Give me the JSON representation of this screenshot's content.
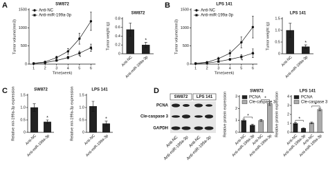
{
  "panel_labels": [
    "A",
    "B",
    "C",
    "D"
  ],
  "blot": {
    "proteins": [
      "PCNA",
      "Cle-caspase 3",
      "GAPDH"
    ],
    "cell_lines": [
      "SW872",
      "LPS 141"
    ],
    "lanes": [
      "Anti-NC",
      "Anti-miR-199a-3p",
      "Anti-NC",
      "Anti-miR-199a-3p"
    ]
  },
  "chart_data": [
    {
      "type": "line",
      "title": "SW872",
      "xlabel": "Time(week)",
      "ylabel": "Tumor volume(mm3)",
      "x": [
        1,
        2,
        3,
        4,
        5,
        6
      ],
      "xlim": [
        0.6,
        6.4
      ],
      "xticks": [
        1,
        2,
        3,
        4,
        5,
        6
      ],
      "ylim": [
        0,
        1500
      ],
      "yticks": [
        0,
        500,
        1000,
        1500
      ],
      "legend": "upper left",
      "series": [
        {
          "name": "Anti-NC",
          "color": "#111",
          "marker": "circle",
          "values": [
            20,
            60,
            180,
            350,
            700,
            1180
          ],
          "errors": [
            10,
            20,
            40,
            80,
            150,
            250
          ]
        },
        {
          "name": "Anti-miR-199a-3p",
          "color": "#111",
          "marker": "square",
          "values": [
            15,
            40,
            100,
            180,
            300,
            450
          ],
          "errors": [
            5,
            15,
            25,
            40,
            60,
            100
          ]
        }
      ],
      "annotations": [
        {
          "text": "*",
          "x": 5
        },
        {
          "text": "*",
          "x": 6
        }
      ]
    },
    {
      "type": "bar",
      "title": "SW872",
      "ylabel": "Tumor weight (g)",
      "categories": [
        "Anti-NC",
        "Anti-miR-199a-3p"
      ],
      "ylim": [
        0,
        0.8
      ],
      "yticks": [
        0,
        0.2,
        0.4,
        0.6,
        0.8
      ],
      "series": [
        {
          "color": "#222",
          "values": [
            0.55,
            0.2
          ],
          "errors": [
            0.15,
            0.06
          ]
        }
      ],
      "annotations": [
        {
          "text": "*",
          "at": 1
        }
      ]
    },
    {
      "type": "line",
      "title": "LPS 141",
      "xlabel": "Time(week)",
      "ylabel": "Tumor volume(mm3)",
      "x": [
        1,
        2,
        3,
        4,
        5,
        6
      ],
      "xlim": [
        0.6,
        6.4
      ],
      "xticks": [
        1,
        2,
        3,
        4,
        5,
        6
      ],
      "ylim": [
        0,
        1500
      ],
      "yticks": [
        0,
        500,
        1000,
        1500
      ],
      "legend": "upper left",
      "series": [
        {
          "name": "Anti-NC",
          "color": "#111",
          "marker": "circle",
          "values": [
            20,
            50,
            150,
            300,
            600,
            1020
          ],
          "errors": [
            10,
            20,
            40,
            80,
            150,
            300
          ]
        },
        {
          "name": "Anti-miR-199a-3p",
          "color": "#111",
          "marker": "square",
          "values": [
            15,
            30,
            70,
            130,
            200,
            300
          ],
          "errors": [
            5,
            10,
            20,
            30,
            60,
            120
          ]
        }
      ],
      "annotations": [
        {
          "text": "*",
          "x": 5
        },
        {
          "text": "*",
          "x": 6
        }
      ]
    },
    {
      "type": "bar",
      "title": "LPS 141",
      "ylabel": "Tumor weight (g)",
      "categories": [
        "Anti-NC",
        "Anti-miR-199a-3p"
      ],
      "ylim": [
        0,
        1.5
      ],
      "yticks": [
        0,
        0.5,
        {
          "value": 1,
          "label": "1.0"
        },
        1.5
      ],
      "series": [
        {
          "color": "#222",
          "values": [
            1.0,
            0.3
          ],
          "errors": [
            0.3,
            0.08
          ]
        }
      ],
      "annotations": [
        {
          "text": "*",
          "at": 1
        }
      ]
    },
    {
      "type": "bar",
      "title": "SW872",
      "ylabel": "Relative mir-199a-3p expression",
      "categories": [
        "Anti-NC",
        "Anti-miR-199a-3p"
      ],
      "ylim": [
        0,
        1.5
      ],
      "yticks": [
        0,
        0.5,
        {
          "value": 1,
          "label": "1.0"
        },
        1.5
      ],
      "series": [
        {
          "color": "#222",
          "values": [
            1.0,
            0.42
          ],
          "errors": [
            0.15,
            0.08
          ]
        }
      ],
      "annotations": [
        {
          "text": "*",
          "at": 1
        }
      ]
    },
    {
      "type": "bar",
      "title": "LPS 141",
      "ylabel": "Relative mir-199a-3p expression",
      "categories": [
        "Anti-NC",
        "Anti-miR-199a-3p"
      ],
      "ylim": [
        0,
        1.5
      ],
      "yticks": [
        0,
        0.5,
        {
          "value": 1,
          "label": "1.0"
        },
        1.5
      ],
      "series": [
        {
          "color": "#222",
          "values": [
            1.05,
            0.35
          ],
          "errors": [
            0.2,
            0.1
          ]
        }
      ],
      "annotations": [
        {
          "text": "*",
          "at": 1
        }
      ]
    },
    {
      "type": "bar",
      "title": "SW872",
      "ylabel": "Relative protein expression",
      "categories": [
        "Anti-NC",
        "Anti-miR-199a-3p",
        "Anti-NC",
        "Anti-miR-199a-3p"
      ],
      "ylim": [
        0,
        3
      ],
      "yticks": [
        0,
        1,
        2,
        3
      ],
      "legend": "upper left",
      "series": [
        {
          "name": "PCNA",
          "color": "#222",
          "values": [
            1.0,
            0.6,
            null,
            null
          ],
          "errors": [
            0.1,
            0.08,
            null,
            null
          ]
        },
        {
          "name": "Cle-caspase 3",
          "color": "#aaa",
          "values": [
            null,
            null,
            1.0,
            2.4
          ],
          "errors": [
            null,
            null,
            0.08,
            0.15
          ]
        }
      ],
      "annotations": [
        {
          "text": "*",
          "between": [
            0,
            1
          ]
        },
        {
          "text": "*",
          "between": [
            2,
            3
          ]
        }
      ]
    },
    {
      "type": "bar",
      "title": "LPS 141",
      "ylabel": "Relative protein expression",
      "categories": [
        "Anti-NC",
        "Anti-miR-199a-3p",
        "Anti-NC",
        "Anti-miR-199a-3p"
      ],
      "ylim": [
        0,
        4
      ],
      "yticks": [
        0,
        1,
        2,
        3,
        4
      ],
      "legend": "upper left",
      "series": [
        {
          "name": "PCNA",
          "color": "#222",
          "values": [
            1.0,
            0.45,
            null,
            null
          ],
          "errors": [
            0.1,
            0.06,
            null,
            null
          ]
        },
        {
          "name": "Cle-caspase 3",
          "color": "#aaa",
          "values": [
            null,
            null,
            1.05,
            2.55
          ],
          "errors": [
            null,
            null,
            0.1,
            0.15
          ]
        }
      ],
      "annotations": [
        {
          "text": "*",
          "between": [
            0,
            1
          ]
        },
        {
          "text": "*",
          "between": [
            2,
            3
          ]
        }
      ]
    }
  ]
}
